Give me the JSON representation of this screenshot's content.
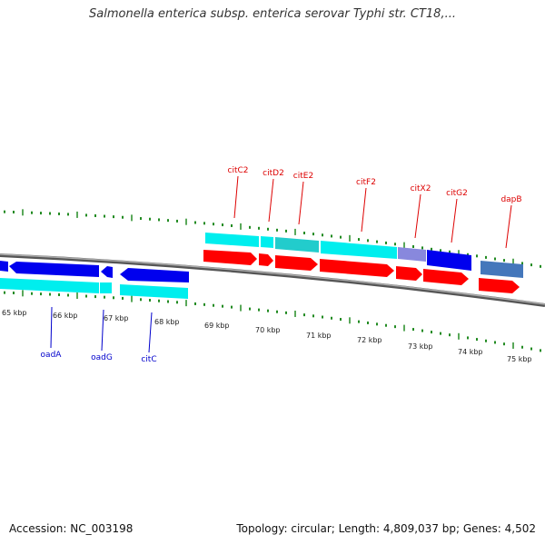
{
  "title": "Salmonella enterica subsp. enterica serovar Typhi str. CT18,...",
  "footer": {
    "accession": "Accession: NC_003198",
    "summary": "Topology: circular; Length: 4,809,037 bp; Genes: 4,502"
  },
  "colors": {
    "cds_plus": "#ff0000",
    "cds_minus": "#0000ee",
    "gene_strip": "#00eeee",
    "tick": "#228b22",
    "backbone": "#808080",
    "label_plus": "#dd0000",
    "label_minus": "#0000cc"
  },
  "ticks": [
    {
      "label": "65 kbp"
    },
    {
      "label": "66 kbp"
    },
    {
      "label": "67 kbp"
    },
    {
      "label": "68 kbp"
    },
    {
      "label": "69 kbp"
    },
    {
      "label": "70 kbp"
    },
    {
      "label": "71 kbp"
    },
    {
      "label": "72 kbp"
    },
    {
      "label": "73 kbp"
    },
    {
      "label": "74 kbp"
    },
    {
      "label": "75 kbp"
    }
  ],
  "genes_top": [
    {
      "name": "citC2"
    },
    {
      "name": "citD2"
    },
    {
      "name": "citE2"
    },
    {
      "name": "citF2"
    },
    {
      "name": "citX2"
    },
    {
      "name": "citG2"
    },
    {
      "name": "dapB"
    }
  ],
  "genes_bottom": [
    {
      "name": "oadA"
    },
    {
      "name": "oadG"
    },
    {
      "name": "citC"
    }
  ]
}
